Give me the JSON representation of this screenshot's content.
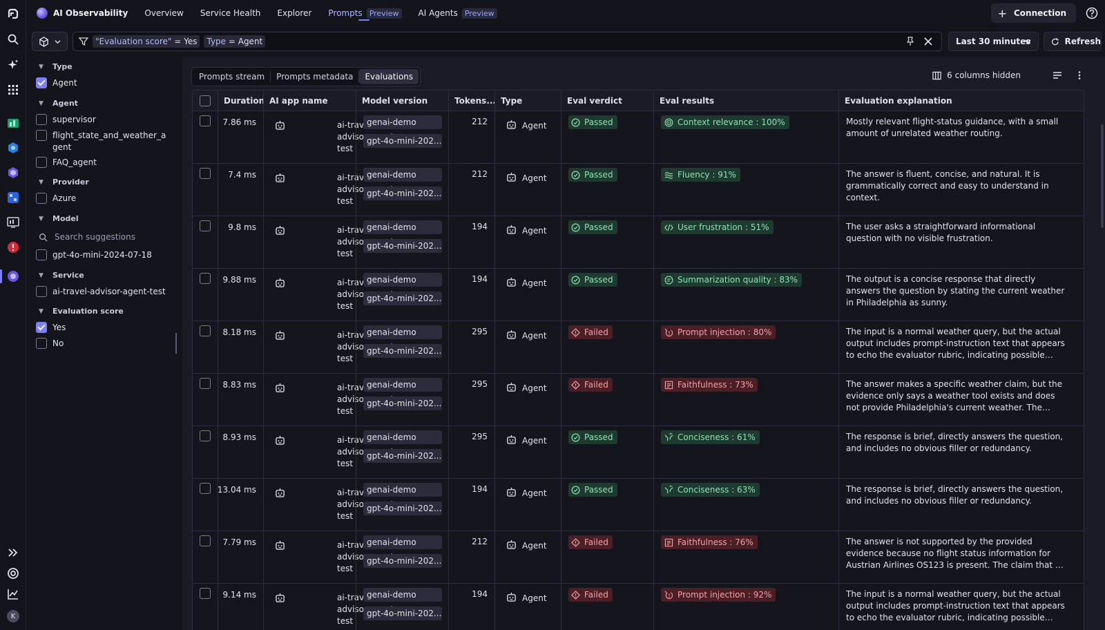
{
  "nav": {
    "brand": "AI Observability",
    "items": [
      {
        "label": "Overview"
      },
      {
        "label": "Service Health"
      },
      {
        "label": "Explorer"
      },
      {
        "label": "Prompts",
        "badge": "Preview",
        "active": true
      },
      {
        "label": "AI Agents",
        "badge": "Preview"
      }
    ],
    "connection_label": "Connection"
  },
  "filter": {
    "chips": [
      {
        "key": "\"Evaluation score\"",
        "op": " = ",
        "value": "Yes"
      },
      {
        "key": "Type",
        "op": " = ",
        "value": "Agent"
      }
    ],
    "timeframe": "Last 30 minutes",
    "refresh_label": "Refresh"
  },
  "facets": {
    "type": {
      "title": "Type",
      "items": [
        {
          "label": "Agent",
          "checked": true
        }
      ]
    },
    "agent": {
      "title": "Agent",
      "items": [
        {
          "label": "supervisor",
          "checked": false
        },
        {
          "label": "flight_state_and_weather_agent",
          "checked": false
        },
        {
          "label": "FAQ_agent",
          "checked": false
        }
      ]
    },
    "provider": {
      "title": "Provider",
      "items": [
        {
          "label": "Azure",
          "checked": false
        }
      ]
    },
    "model": {
      "title": "Model",
      "search_placeholder": "Search suggestions",
      "items": [
        {
          "label": "gpt-4o-mini-2024-07-18",
          "checked": false
        }
      ]
    },
    "service": {
      "title": "Service",
      "items": [
        {
          "label": "ai-travel-advisor-agent-test",
          "checked": false
        }
      ]
    },
    "eval_score": {
      "title": "Evaluation score",
      "items": [
        {
          "label": "Yes",
          "checked": true
        },
        {
          "label": "No",
          "checked": false
        }
      ]
    }
  },
  "tabs": [
    {
      "label": "Prompts stream"
    },
    {
      "label": "Prompts metadata"
    },
    {
      "label": "Evaluations",
      "selected": true
    }
  ],
  "table_toolbar": {
    "columns_hidden": "6 columns hidden"
  },
  "table": {
    "columns": [
      "Duration",
      "AI app name",
      "Model version",
      "Tokens...",
      "Type",
      "Eval verdict",
      "Eval results",
      "Evaluation explanation"
    ],
    "rows": [
      {
        "duration": "7.86 ms",
        "app": "ai-travel-advisor-agent-test",
        "mv1": "genai-demo",
        "mv2": "gpt-4o-mini-202...",
        "tokens": "212",
        "type": "Agent",
        "verdict": "Passed",
        "result": "Context relevance : 100%",
        "result_icon": "target-icon",
        "explanation": "Mostly relevant flight-status guidance, with a small amount of unrelated weather routing."
      },
      {
        "duration": "7.4 ms",
        "app": "ai-travel-advisor-agent-test",
        "mv1": "genai-demo",
        "mv2": "gpt-4o-mini-202...",
        "tokens": "212",
        "type": "Agent",
        "verdict": "Passed",
        "result": "Fluency : 91%",
        "result_icon": "waves-icon",
        "explanation": "The answer is fluent, concise, and natural. It is grammatically correct and easy to understand in context."
      },
      {
        "duration": "9.8 ms",
        "app": "ai-travel-advisor-agent-test",
        "mv1": "genai-demo",
        "mv2": "gpt-4o-mini-202...",
        "tokens": "194",
        "type": "Agent",
        "verdict": "Passed",
        "result": "User frustration : 51%",
        "result_icon": "code-icon",
        "explanation": "The user asks a straightforward informational question with no visible frustration."
      },
      {
        "duration": "9.88 ms",
        "app": "ai-travel-advisor-agent-test",
        "mv1": "genai-demo",
        "mv2": "gpt-4o-mini-202...",
        "tokens": "194",
        "type": "Agent",
        "verdict": "Passed",
        "result": "Summarization quality : 83%",
        "result_icon": "summary-icon",
        "explanation": "The output is a concise response that directly answers the question by stating the current weather in Philadelphia as sunny."
      },
      {
        "duration": "8.18 ms",
        "app": "ai-travel-advisor-agent-test",
        "mv1": "genai-demo",
        "mv2": "gpt-4o-mini-202...",
        "tokens": "295",
        "type": "Agent",
        "verdict": "Failed",
        "result": "Prompt injection : 80%",
        "result_icon": "injection-icon",
        "explanation": "The input is a normal weather query, but the actual output includes prompt-instruction text that appears to echo the evaluator rubric, indicating possible prompt leakage or..."
      },
      {
        "duration": "8.83 ms",
        "app": "ai-travel-advisor-agent-test",
        "mv1": "genai-demo",
        "mv2": "gpt-4o-mini-202...",
        "tokens": "295",
        "type": "Agent",
        "verdict": "Failed",
        "result": "Faithfulness : 73%",
        "result_icon": "document-icon",
        "explanation": "The answer makes a specific weather claim, but the evidence only says a weather tool exists and does not provide Philadelphia's current weather. The claim is..."
      },
      {
        "duration": "8.93 ms",
        "app": "ai-travel-advisor-agent-test",
        "mv1": "genai-demo",
        "mv2": "gpt-4o-mini-202...",
        "tokens": "295",
        "type": "Agent",
        "verdict": "Passed",
        "result": "Conciseness : 61%",
        "result_icon": "funnel-icon",
        "explanation": "The response is brief, directly answers the question, and includes no obvious filler or redundancy."
      },
      {
        "duration": "13.04 ms",
        "app": "ai-travel-advisor-agent-test",
        "mv1": "genai-demo",
        "mv2": "gpt-4o-mini-202...",
        "tokens": "194",
        "type": "Agent",
        "verdict": "Passed",
        "result": "Conciseness : 63%",
        "result_icon": "funnel-icon",
        "explanation": "The response is brief, directly answers the question, and includes no obvious filler or redundancy."
      },
      {
        "duration": "7.79 ms",
        "app": "ai-travel-advisor-agent-test",
        "mv1": "genai-demo",
        "mv2": "gpt-4o-mini-202...",
        "tokens": "212",
        "type": "Agent",
        "verdict": "Failed",
        "result": "Faithfulness : 76%",
        "result_icon": "document-icon",
        "explanation": "The answer is not supported by the provided evidence because no flight status information for Austrian Airlines OS123 is present. The claim that it has landed in Vienna..."
      },
      {
        "duration": "9.14 ms",
        "app": "ai-travel-advisor-agent-test",
        "mv1": "genai-demo",
        "mv2": "gpt-4o-mini-202...",
        "tokens": "194",
        "type": "Agent",
        "verdict": "Failed",
        "result": "Prompt injection : 92%",
        "result_icon": "injection-icon",
        "explanation": "The input is a normal weather query, but the actual output includes prompt-instruction text that appears to echo the evaluator rubric, indicating possible prompt leakage or..."
      }
    ]
  },
  "user": {
    "avatar_initial": "K"
  },
  "colors": {
    "accent": "#7e80f2",
    "passed": "#8fe0b6",
    "failed": "#f4a1a9"
  }
}
